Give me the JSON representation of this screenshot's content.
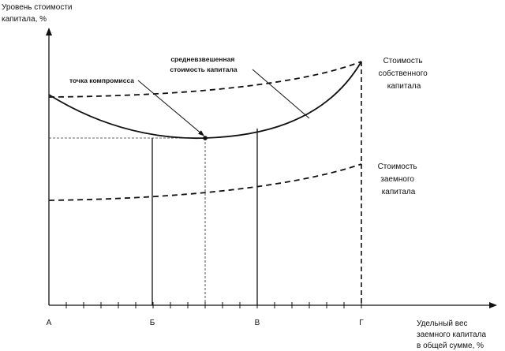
{
  "y_axis_label": [
    "Уровень стоимости",
    "капитала, %"
  ],
  "x_axis_label": [
    "Удельный вес",
    "заемного капитала",
    "в общей сумме, %"
  ],
  "x_points": [
    "А",
    "Б",
    "В",
    "Г"
  ],
  "wacc_label": [
    "средневзвешенная",
    "стоимость капитала"
  ],
  "compromise_label": "точка компромисса",
  "equity_label": [
    "Стоимость",
    "собственного",
    "капитала"
  ],
  "debt_label": [
    "Стоимость",
    "заемного",
    "капитала"
  ]
}
